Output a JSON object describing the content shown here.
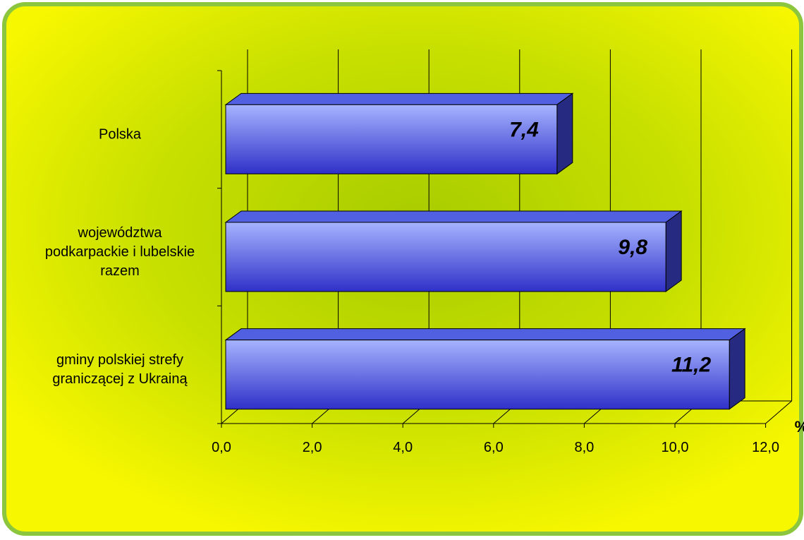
{
  "chart_data": {
    "type": "bar",
    "orientation": "horizontal",
    "style": "3d",
    "categories": [
      [
        "Polska"
      ],
      [
        "województwa",
        "podkarpackie i lubelskie",
        "razem"
      ],
      [
        "gminy polskiej strefy",
        "graniczącej z Ukrainą"
      ]
    ],
    "values": [
      7.4,
      9.8,
      11.2
    ],
    "value_labels": [
      "7,4",
      "9,8",
      "11,2"
    ],
    "x_ticks": [
      "0,0",
      "2,0",
      "4,0",
      "6,0",
      "8,0",
      "10,0",
      "12,0"
    ],
    "xlim": [
      0,
      12
    ],
    "unit_label": "%",
    "grid": "vertical",
    "legend": "none",
    "colors": {
      "background": "#f7f700",
      "background_glow": "#a8cc00",
      "frame_border": "#8cc63f",
      "bar_light": "#a6b4ff",
      "bar_dark": "#3030c8",
      "bar_top": "#5060e0",
      "bar_side": "#262a80"
    }
  }
}
